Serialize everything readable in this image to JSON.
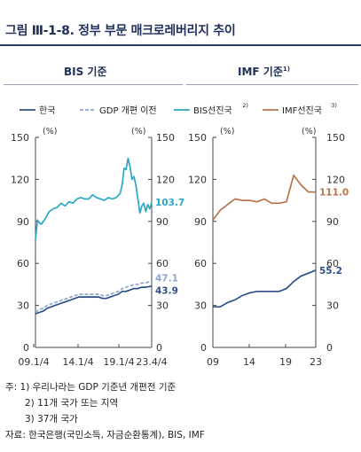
{
  "figure": {
    "title": "그림 Ⅲ-1-8. 정부 부문 매크로레버리지 추이",
    "left_panel_title": "BIS 기준",
    "right_panel_title": "IMF 기준",
    "right_panel_title_sup": "1)"
  },
  "legend": [
    {
      "key": "korea",
      "label": "한국",
      "sup": ""
    },
    {
      "key": "gdp_old",
      "label": "GDP 개편 이전",
      "sup": ""
    },
    {
      "key": "bis_adv",
      "label": "BIS선진국",
      "sup": "2)"
    },
    {
      "key": "imf_adv",
      "label": "IMF선진국",
      "sup": "3)"
    }
  ],
  "colors": {
    "korea": "#2e4f88",
    "gdp_old": "#8ea6cf",
    "bis_adv": "#2aa8c4",
    "imf_adv": "#b8734a",
    "axis": "#444444"
  },
  "chart_data": [
    {
      "type": "line",
      "title": "BIS 기준",
      "x_ticks": [
        "09.1/4",
        "14.1/4",
        "19.1/4",
        "23.4/4"
      ],
      "x_range": [
        2009.0,
        2023.75
      ],
      "ylim": [
        0,
        150
      ],
      "y_ticks": [
        0,
        30,
        60,
        90,
        120,
        150
      ],
      "left_unit": "(%)",
      "right_unit": "(%)",
      "series": [
        {
          "key": "bis_adv",
          "name": "BIS선진국",
          "end_label": "103.7",
          "x": [
            2009.0,
            2009.25,
            2009.5,
            2009.75,
            2010.25,
            2010.75,
            2011.25,
            2011.75,
            2012.25,
            2012.75,
            2013.25,
            2013.75,
            2014.25,
            2014.75,
            2015.25,
            2015.75,
            2016.25,
            2016.75,
            2017.25,
            2017.75,
            2018.25,
            2018.75,
            2019.25,
            2019.75,
            2020.0,
            2020.25,
            2020.5,
            2020.75,
            2021.0,
            2021.25,
            2021.5,
            2021.75,
            2022.0,
            2022.25,
            2022.5,
            2022.75,
            2023.0,
            2023.25,
            2023.5,
            2023.75
          ],
          "values": [
            77,
            91,
            89,
            88,
            92,
            97,
            99,
            100,
            103,
            101,
            104,
            103,
            106,
            107,
            106,
            106,
            109,
            107,
            106,
            105,
            107,
            106,
            107,
            110,
            116,
            128,
            127,
            135,
            129,
            120,
            122,
            116,
            106,
            96,
            101,
            103,
            97,
            102,
            99,
            103.7
          ]
        },
        {
          "key": "gdp_old",
          "name": "GDP 개편 이전",
          "end_label": "47.1",
          "x": [
            2009.0,
            2009.5,
            2010.0,
            2010.5,
            2011.0,
            2011.5,
            2012.0,
            2012.5,
            2013.0,
            2013.5,
            2014.0,
            2014.5,
            2015.0,
            2015.5,
            2016.0,
            2016.5,
            2017.0,
            2017.5,
            2018.0,
            2018.5,
            2019.0,
            2019.5,
            2020.0,
            2020.5,
            2021.0,
            2021.5,
            2022.0,
            2022.5,
            2023.0,
            2023.5,
            2023.75
          ],
          "values": [
            25,
            27,
            28,
            30,
            31,
            32,
            33,
            34,
            35,
            36,
            37,
            38,
            38,
            38,
            38,
            38,
            38,
            37,
            37,
            38,
            39,
            40,
            42,
            43,
            44,
            45,
            45,
            46,
            46,
            47,
            47.1
          ]
        },
        {
          "key": "korea",
          "name": "한국",
          "end_label": "43.9",
          "x": [
            2009.0,
            2009.5,
            2010.0,
            2010.5,
            2011.0,
            2011.5,
            2012.0,
            2012.5,
            2013.0,
            2013.5,
            2014.0,
            2014.5,
            2015.0,
            2015.5,
            2016.0,
            2016.5,
            2017.0,
            2017.5,
            2018.0,
            2018.5,
            2019.0,
            2019.5,
            2020.0,
            2020.5,
            2021.0,
            2021.5,
            2022.0,
            2022.5,
            2023.0,
            2023.5,
            2023.75
          ],
          "values": [
            24,
            25,
            26,
            28,
            29,
            30,
            31,
            32,
            33,
            34,
            35,
            36,
            36,
            36,
            36,
            36,
            36,
            35,
            35,
            36,
            37,
            38,
            40,
            40,
            41,
            42,
            42,
            43,
            43,
            43.5,
            43.9
          ]
        }
      ]
    },
    {
      "type": "line",
      "title": "IMF 기준",
      "x_ticks": [
        "09",
        "14",
        "19",
        "23"
      ],
      "x_range": [
        2009,
        2023
      ],
      "ylim": [
        0,
        150
      ],
      "y_ticks": [
        0,
        30,
        60,
        90,
        120,
        150
      ],
      "left_unit": "(%)",
      "right_unit": "(%)",
      "series": [
        {
          "key": "imf_adv",
          "name": "IMF선진국",
          "end_label": "111.0",
          "x": [
            2009,
            2010,
            2011,
            2012,
            2013,
            2014,
            2015,
            2016,
            2017,
            2018,
            2019,
            2020,
            2021,
            2022,
            2023
          ],
          "values": [
            91,
            98,
            102,
            106,
            105,
            105,
            104,
            106,
            103,
            103,
            104,
            123,
            116,
            111,
            111.0
          ]
        },
        {
          "key": "korea",
          "name": "한국",
          "end_label": "55.2",
          "x": [
            2009,
            2010,
            2011,
            2012,
            2013,
            2014,
            2015,
            2016,
            2017,
            2018,
            2019,
            2020,
            2021,
            2022,
            2023
          ],
          "values": [
            29,
            29,
            32,
            34,
            37,
            39,
            40,
            40,
            40,
            40,
            42,
            47,
            51,
            53,
            55.2
          ]
        }
      ]
    }
  ],
  "notes": {
    "lines": [
      "주: 1) 우리나라는 GDP 기준년 개편전 기준",
      "2) 11개 국가 또는 지역",
      "3) 37개 국가",
      "자료: 한국은행(국민소득, 자금순환통계), BIS, IMF"
    ]
  }
}
